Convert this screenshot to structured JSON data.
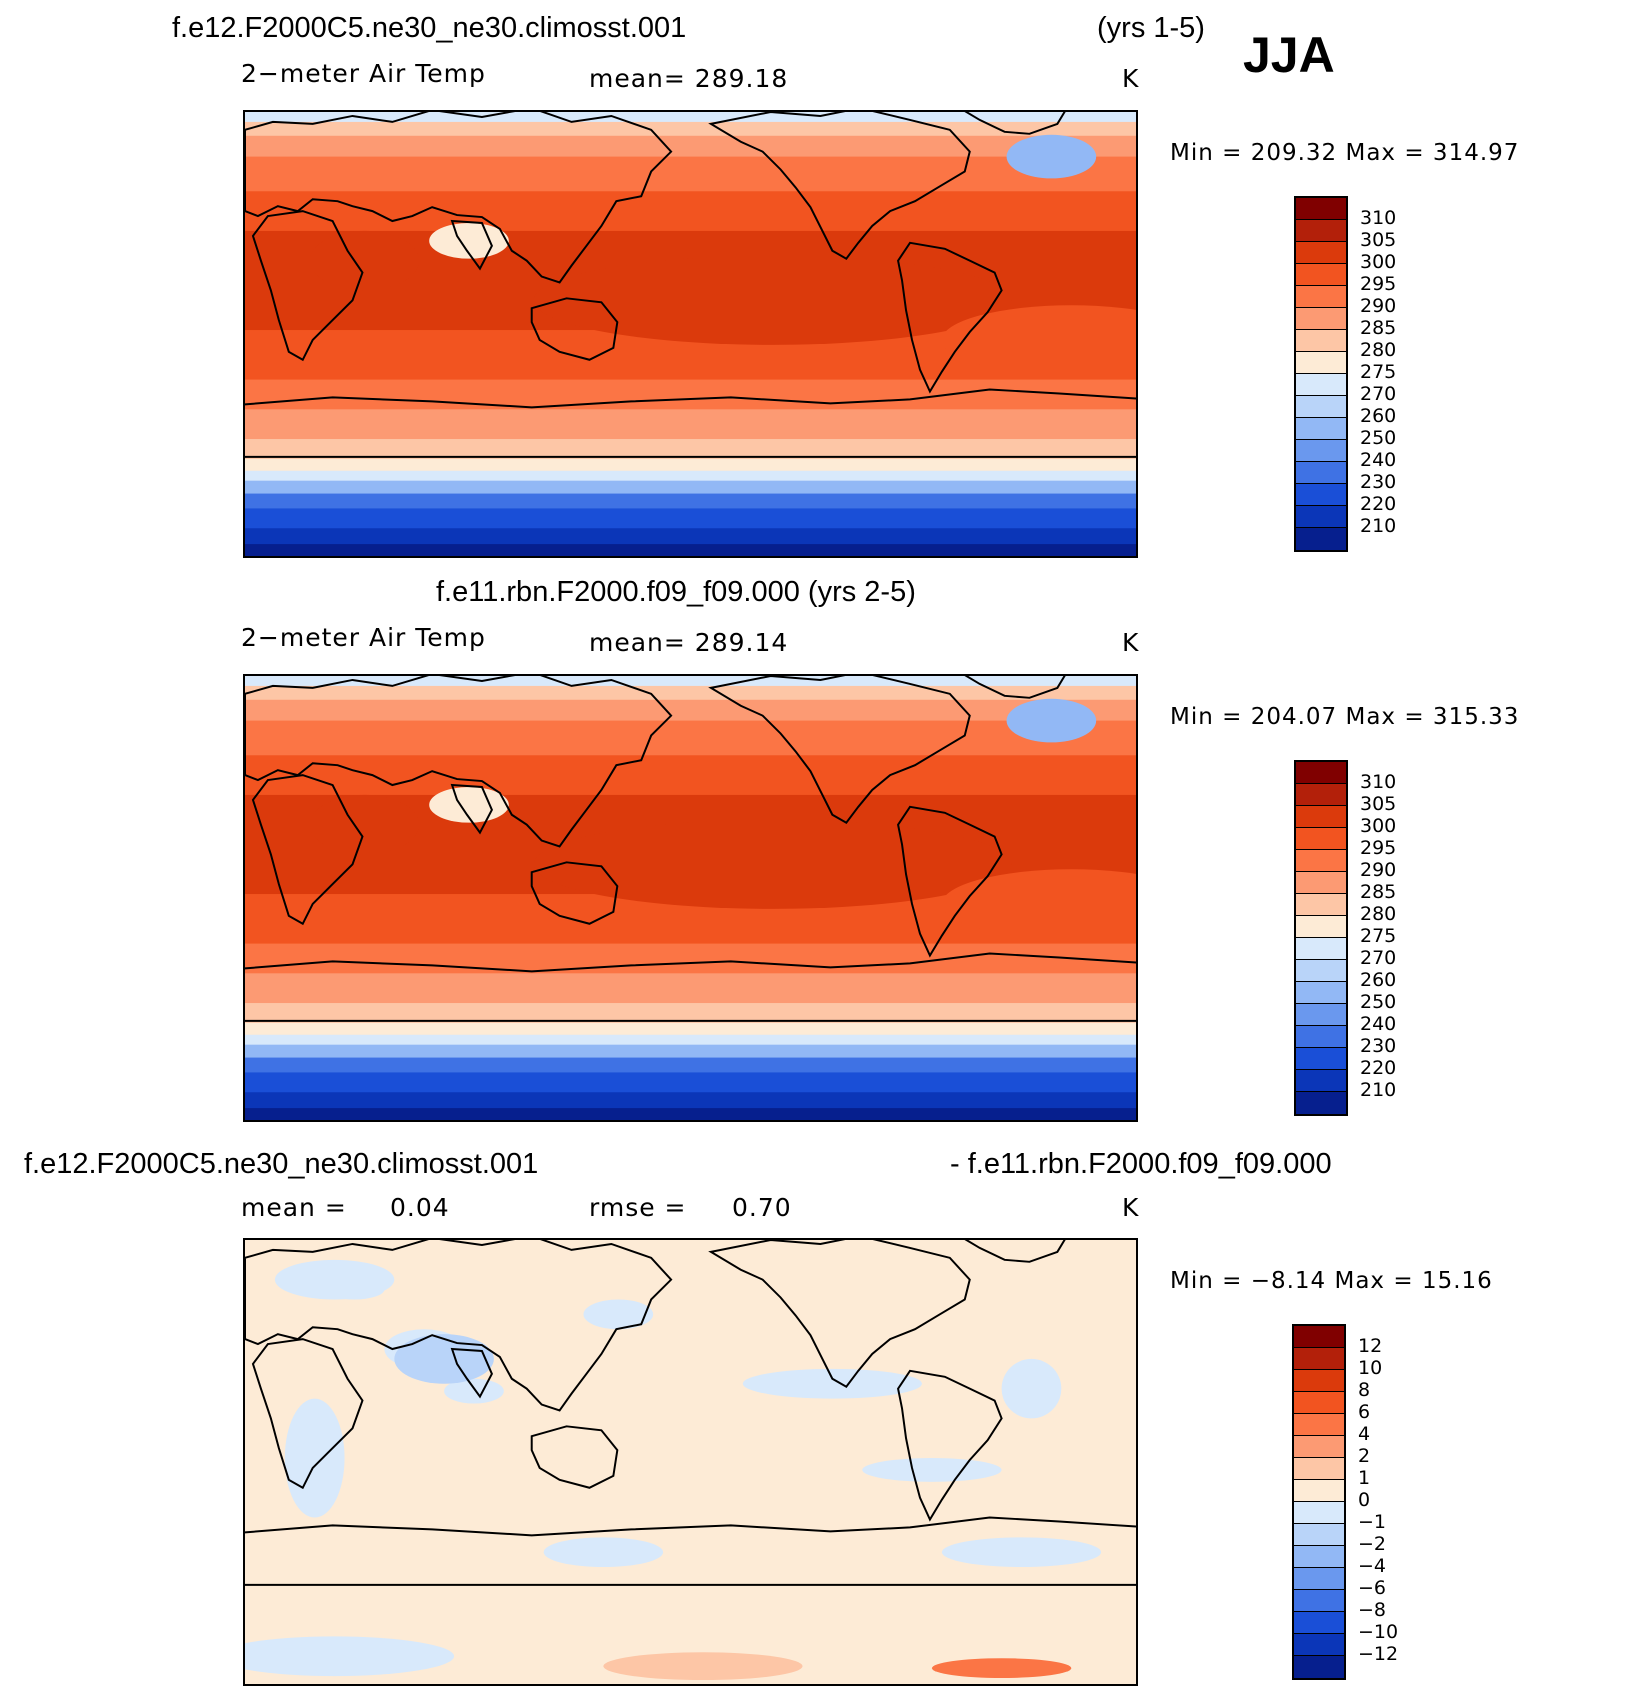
{
  "season": "JJA",
  "panels": [
    {
      "case_title": "f.e12.F2000C5.ne30_ne30.climosst.001",
      "years": "(yrs 1-5)",
      "variable": "2−meter Air Temp",
      "stat": "mean=  289.18",
      "units": "K",
      "minmax": "Min  =  209.32  Max  =  314.97",
      "map_type": "absolute"
    },
    {
      "case_title": "f.e11.rbn.F2000.f09_f09.000 (yrs 2-5)",
      "variable": "2−meter Air Temp",
      "stat": "mean=  289.14",
      "units": "K",
      "minmax": "Min  =  204.07  Max  =  315.33",
      "map_type": "absolute"
    },
    {
      "case_left": "f.e12.F2000C5.ne30_ne30.climosst.001",
      "case_right": "- f.e11.rbn.F2000.f09_f09.000",
      "mean_label": "mean  =",
      "mean_value": "0.04",
      "rmse_label": "rmse  =",
      "rmse_value": "0.70",
      "units": "K",
      "minmax": "Min  =    −8.14  Max  =    15.16",
      "map_type": "difference"
    }
  ],
  "colorbar_abs": {
    "labels": [
      "310",
      "305",
      "300",
      "295",
      "290",
      "285",
      "280",
      "275",
      "270",
      "260",
      "250",
      "240",
      "230",
      "220",
      "210"
    ],
    "colors": [
      "#800000",
      "#b3200a",
      "#db3a0c",
      "#f25420",
      "#fb7545",
      "#fc9a73",
      "#fdc6a6",
      "#fdebd6",
      "#d8e9fb",
      "#b9d4f9",
      "#92b8f5",
      "#6a98ee",
      "#3f72e4",
      "#1a4fd7",
      "#0b36b8",
      "#061f8e"
    ]
  },
  "colorbar_diff": {
    "labels": [
      "12",
      "10",
      "8",
      "6",
      "4",
      "2",
      "1",
      "0",
      "−1",
      "−2",
      "−4",
      "−6",
      "−8",
      "−10",
      "−12"
    ],
    "colors": [
      "#800000",
      "#b3200a",
      "#db3a0c",
      "#f25420",
      "#fb7545",
      "#fc9a73",
      "#fdc6a6",
      "#fdebd6",
      "#d8e9fb",
      "#b9d4f9",
      "#92b8f5",
      "#6a98ee",
      "#3f72e4",
      "#1a4fd7",
      "#0b36b8",
      "#061f8e"
    ]
  }
}
